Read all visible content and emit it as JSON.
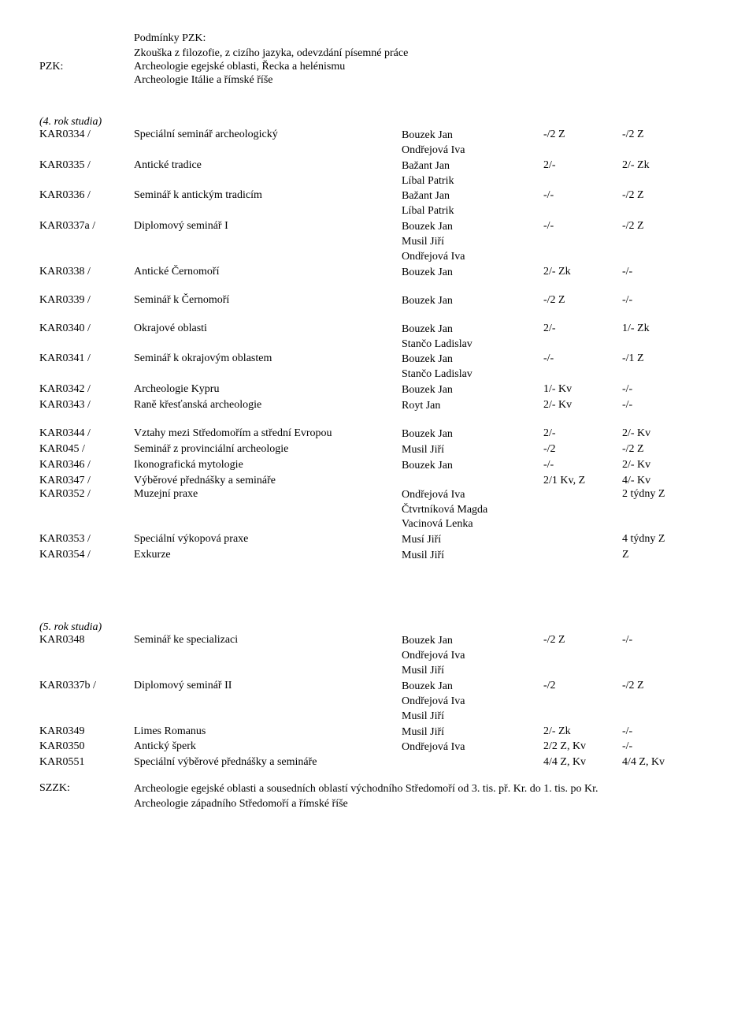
{
  "header": {
    "pzk_label": "PZK:",
    "pzk_title": "Podmínky PZK:",
    "lines": [
      "Zkouška z filozofie, z cizího jazyka, odevzdání písemné práce",
      "Archeologie egejské oblasti, Řecka a helénismu",
      "Archeologie Itálie a římské říše"
    ]
  },
  "year4": {
    "title": "(4. rok studia)",
    "rows": [
      {
        "code": "KAR0334 /",
        "name": "Speciální seminář archeologický",
        "teachers": [
          "Bouzek Jan",
          "Ondřejová Iva"
        ],
        "c4": "-/2 Z",
        "c5": "-/2 Z"
      },
      {
        "code": "KAR0335 /",
        "name": "Antické tradice",
        "teachers": [
          "Bažant Jan",
          "Líbal Patrik"
        ],
        "c4": "2/-",
        "c5": "2/- Zk"
      },
      {
        "code": "KAR0336 /",
        "name": "Seminář k antickým tradicím",
        "teachers": [
          "Bažant Jan",
          "Líbal Patrik"
        ],
        "c4": "-/-",
        "c5": "-/2 Z"
      },
      {
        "code": "KAR0337a /",
        "name": "Diplomový seminář I",
        "teachers": [
          "Bouzek Jan",
          "Musil Jiří",
          "Ondřejová Iva"
        ],
        "c4": "-/-",
        "c5": "-/2 Z"
      },
      {
        "code": "KAR0338 /",
        "name": "Antické Černomoří",
        "teachers": [
          "Bouzek Jan"
        ],
        "c4": "2/- Zk",
        "c5": "-/-"
      }
    ],
    "rows2": [
      {
        "code": "KAR0339 /",
        "name": "Seminář k Černomoří",
        "teachers": [
          "Bouzek Jan"
        ],
        "c4": "-/2 Z",
        "c5": "-/-"
      }
    ],
    "rows3": [
      {
        "code": "KAR0340 /",
        "name": "Okrajové oblasti",
        "teachers": [
          "Bouzek Jan",
          "Stančo Ladislav"
        ],
        "c4": "2/-",
        "c5": "1/- Zk"
      },
      {
        "code": "KAR0341 /",
        "name": "Seminář k okrajovým oblastem",
        "teachers": [
          "Bouzek Jan",
          "Stančo Ladislav"
        ],
        "c4": "-/-",
        "c5": "-/1 Z"
      },
      {
        "code": "KAR0342 /",
        "name": "Archeologie Kypru",
        "teachers": [
          "Bouzek Jan"
        ],
        "c4": "1/- Kv",
        "c5": "-/-"
      },
      {
        "code": "KAR0343 /",
        "name": "Raně křesťanská archeologie",
        "teachers": [
          "Royt Jan"
        ],
        "c4": "2/- Kv",
        "c5": "-/-"
      }
    ],
    "rows4": [
      {
        "code": "KAR0344 /",
        "name": "Vztahy mezi Středomořím a střední Evropou",
        "teachers": [
          "Bouzek Jan"
        ],
        "c4": "2/-",
        "c5": "2/- Kv"
      },
      {
        "code": "KAR045 /",
        "name": "Seminář z provinciální archeologie",
        "teachers": [
          "Musil Jiří"
        ],
        "c4": "-/2",
        "c5": "-/2 Z"
      },
      {
        "code": "KAR0346 /",
        "name": "Ikonografická mytologie",
        "teachers": [
          "Bouzek Jan"
        ],
        "c4": "-/-",
        "c5": "2/- Kv"
      },
      {
        "code": "KAR0347 /",
        "name": "Výběrové přednášky a semináře",
        "teachers": [
          ""
        ],
        "c4": "2/1 Kv, Z",
        "c5": "4/- Kv"
      },
      {
        "code": "KAR0352 /",
        "name": "Muzejní praxe",
        "teachers": [
          "Ondřejová Iva",
          "Čtvrtníková Magda",
          "Vacinová Lenka"
        ],
        "c4": "",
        "c5": "2 týdny Z"
      },
      {
        "code": "KAR0353 /",
        "name": "Speciální výkopová praxe",
        "teachers": [
          "Musí Jiří"
        ],
        "c4": "",
        "c5": "4 týdny Z"
      },
      {
        "code": "KAR0354 /",
        "name": "Exkurze",
        "teachers": [
          "Musil Jiří"
        ],
        "c4": "",
        "c5": "Z"
      }
    ]
  },
  "year5": {
    "title": "(5. rok studia)",
    "rows": [
      {
        "code": "KAR0348",
        "name": "Seminář ke specializaci",
        "teachers": [
          "Bouzek Jan",
          "Ondřejová Iva",
          "Musil Jiří"
        ],
        "c4": "-/2 Z",
        "c5": "-/-"
      },
      {
        "code": "KAR0337b /",
        "name": "Diplomový seminář II",
        "teachers": [
          "Bouzek Jan",
          "Ondřejová Iva",
          "Musil Jiří"
        ],
        "c4": "-/2",
        "c5": "-/2 Z"
      },
      {
        "code": "KAR0349",
        "name": "Limes Romanus",
        "teachers": [
          "Musil Jiří"
        ],
        "c4": "2/- Zk",
        "c5": "-/-"
      },
      {
        "code": "KAR0350",
        "name": "Antický šperk",
        "teachers": [
          "Ondřejová Iva"
        ],
        "c4": "2/2 Z, Kv",
        "c5": "-/-"
      },
      {
        "code": "KAR0551",
        "name": "Speciální výběrové přednášky a semináře",
        "teachers": [
          ""
        ],
        "c4": "4/4 Z, Kv",
        "c5": "4/4 Z, Kv"
      }
    ]
  },
  "szzk": {
    "label": "SZZK:",
    "lines": [
      "Archeologie egejské oblasti a sousedních oblastí  východního Středomoří od 3. tis. př. Kr. do 1. tis. po Kr.",
      "Archeologie západního Středomoří a římské říše"
    ]
  }
}
